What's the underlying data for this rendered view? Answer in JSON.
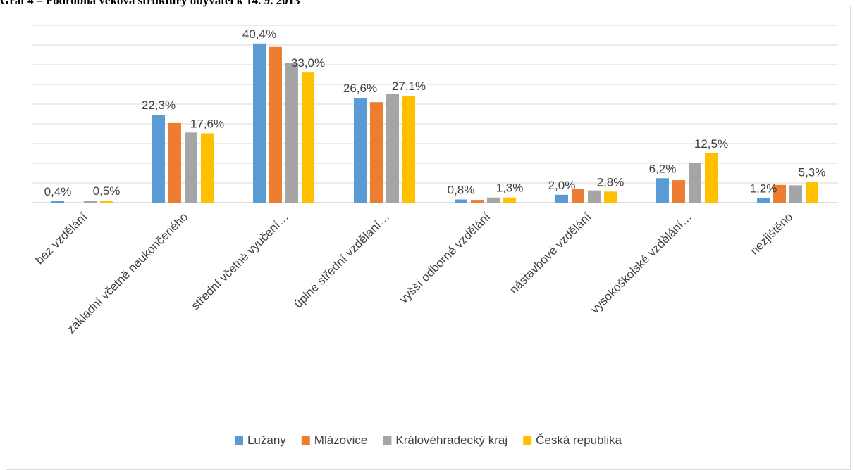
{
  "caption": "Graf 4 – Podrobná věková struktury obyvatel k 14. 9. 2013",
  "chart_data": {
    "type": "bar",
    "categories": [
      "bez vzdělání",
      "základní včetně neukončeného",
      "střední včetně vyučení…",
      "úplné střední vzdělání…",
      "vyšší odborné vzdělání",
      "nástavbové vzdělání",
      "vysokoškolské vzdělání…",
      "nezjištěno"
    ],
    "series": [
      {
        "name": "Lužany",
        "color": "#5b9bd5",
        "values": [
          0.4,
          22.3,
          40.4,
          26.6,
          0.8,
          2.0,
          6.2,
          1.2
        ],
        "labels": [
          "0,4%",
          "22,3%",
          "40,4%",
          "26,6%",
          "0,8%",
          "2,0%",
          "6,2%",
          "1,2%"
        ]
      },
      {
        "name": "Mlázovice",
        "color": "#ed7d31",
        "values": [
          0.0,
          20.2,
          39.5,
          25.5,
          0.7,
          3.4,
          5.7,
          4.5
        ],
        "labels": []
      },
      {
        "name": "Královéhradecký kraj",
        "color": "#a5a5a5",
        "values": [
          0.4,
          17.8,
          35.5,
          27.6,
          1.3,
          3.1,
          10.1,
          4.4
        ],
        "labels": []
      },
      {
        "name": "Česká republika",
        "color": "#ffc000",
        "values": [
          0.5,
          17.6,
          33.0,
          27.1,
          1.3,
          2.8,
          12.5,
          5.3
        ],
        "labels": [
          "0,5%",
          "17,6%",
          "33,0%",
          "27,1%",
          "1,3%",
          "2,8%",
          "12,5%",
          "5,3%"
        ]
      }
    ],
    "ylim": [
      0,
      45
    ],
    "ytick_step": 5,
    "y_axis_labels_visible": false,
    "grid": true,
    "legend_position": "bottom"
  }
}
